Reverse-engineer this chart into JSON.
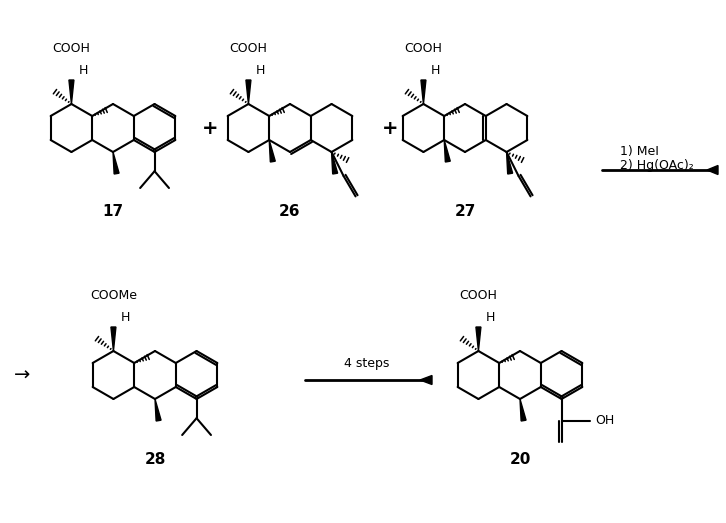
{
  "bg_color": "#ffffff",
  "figsize": [
    7.26,
    5.23
  ],
  "dpi": 100,
  "bond_lw": 1.5,
  "reagents_line1": "1) MeI",
  "reagents_line2": "2) Hg(OAc)₂",
  "steps_label": "4 steps",
  "label17": "17",
  "label26": "26",
  "label27": "27",
  "label28": "28",
  "label20": "20",
  "cooh": "COOH",
  "coome": "COOMe",
  "h_label": "H",
  "oh_label": "OH",
  "text_color": "#000000",
  "bond_color": "#000000",
  "label_fontsize": 11,
  "text_fontsize": 9
}
